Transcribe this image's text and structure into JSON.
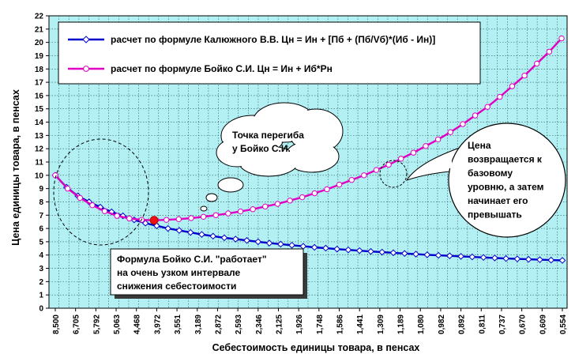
{
  "chart_data": {
    "type": "line",
    "xlabel": "Себестоимость единицы товара, в пенсах",
    "ylabel": "Цена единицы товара, в пенсах",
    "ylim": [
      0,
      22
    ],
    "yticks": [
      0,
      1,
      2,
      3,
      4,
      5,
      6,
      7,
      8,
      9,
      10,
      11,
      12,
      13,
      14,
      15,
      16,
      17,
      18,
      19,
      20,
      21,
      22
    ],
    "x_tick_labels": [
      "8,500",
      "6,705",
      "5,792",
      "5,063",
      "4,468",
      "3,972",
      "3,551",
      "3,189",
      "2,872",
      "2,593",
      "2,346",
      "2,125",
      "1,926",
      "1,748",
      "1,586",
      "1,441",
      "1,309",
      "1,189",
      "1,080",
      "0,982",
      "0,892",
      "0,811",
      "0,737",
      "0,670",
      "0,609",
      "0,554"
    ],
    "background": "#b2f0f4",
    "grid": true,
    "legend_position": "top",
    "series": [
      {
        "name": "расчет по формуле Калюжного В.В. Цн = Ин + [Пб + (Пб/Vб)*(Иб - Ин)]",
        "color": "#0000cc",
        "values": [
          10.0,
          9.1,
          8.45,
          8.0,
          7.6,
          7.25,
          6.95,
          6.65,
          6.4,
          6.2,
          6.0,
          5.85,
          5.7,
          5.55,
          5.42,
          5.3,
          5.2,
          5.1,
          5.0,
          4.9,
          4.82,
          4.74,
          4.66,
          4.58,
          4.52,
          4.45,
          4.39,
          4.33,
          4.27,
          4.22,
          4.17,
          4.12,
          4.07,
          4.02,
          3.98,
          3.94,
          3.9,
          3.86,
          3.82,
          3.78,
          3.74,
          3.71,
          3.68,
          3.65,
          3.62,
          3.6
        ]
      },
      {
        "name": "расчет по формуле Бойко С.И.  Цн = Ин + Иб*Рн",
        "color": "#e000c0",
        "values": [
          10.0,
          9.0,
          8.3,
          7.75,
          7.3,
          6.95,
          6.75,
          6.65,
          6.62,
          6.65,
          6.7,
          6.78,
          6.88,
          7.0,
          7.13,
          7.28,
          7.45,
          7.65,
          7.85,
          8.1,
          8.35,
          8.65,
          8.95,
          9.3,
          9.65,
          10.0,
          10.4,
          10.8,
          11.25,
          11.7,
          12.2,
          12.7,
          13.25,
          13.85,
          14.5,
          15.15,
          15.9,
          16.7,
          17.5,
          18.4,
          19.3,
          20.3
        ]
      }
    ],
    "marked_point": {
      "series": 1,
      "index": 8,
      "color": "#ee1111"
    },
    "annotations": {
      "inflection": [
        "Точка перегиба",
        "у Бойко С.И."
      ],
      "returns": [
        "Цена",
        "возвращается к",
        "базовому",
        "уровню, а затем",
        "начинает  его",
        "превышать"
      ],
      "narrow": [
        "Формула Бойко С.И. \"работает\"",
        "на очень узком интервале",
        "снижения себестоимости"
      ]
    }
  }
}
